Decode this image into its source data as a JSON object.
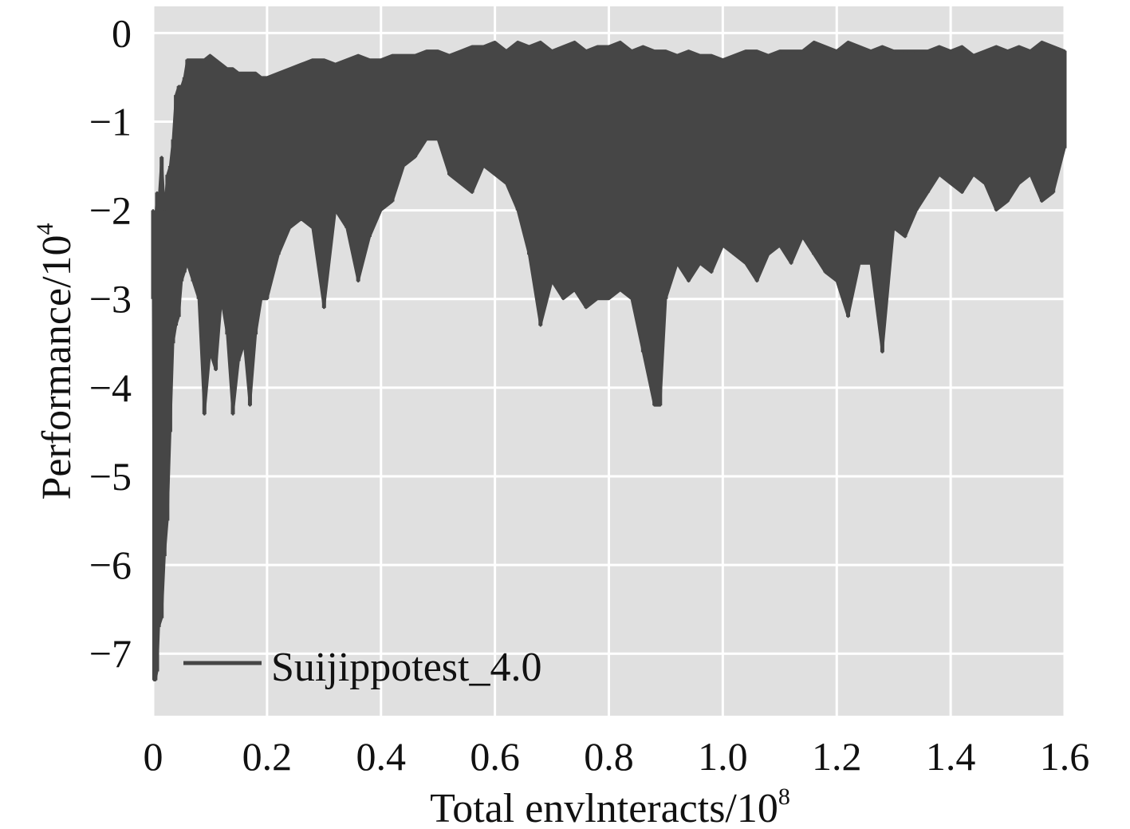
{
  "chart_data": {
    "type": "line",
    "title": "",
    "xlabel": "Total envlnteracts/10",
    "xlabel_superscript": "8",
    "ylabel": "Performance/10",
    "ylabel_superscript": "4",
    "xlim": [
      0,
      1.6
    ],
    "ylim": [
      -7.7,
      0.3
    ],
    "x_ticks": [
      0,
      0.2,
      0.4,
      0.6,
      0.8,
      1.0,
      1.2,
      1.4,
      1.6
    ],
    "x_tick_labels": [
      "0",
      "0.2",
      "0.4",
      "0.6",
      "0.8",
      "1.0",
      "1.2",
      "1.4",
      "1.6"
    ],
    "y_ticks": [
      0,
      -1,
      -2,
      -3,
      -4,
      -5,
      -6,
      -7
    ],
    "y_tick_labels": [
      "0",
      "−1",
      "−2",
      "−3",
      "−4",
      "−5",
      "−6",
      "−7"
    ],
    "grid": true,
    "legend_position": "bottom-left",
    "colors": {
      "series": "#464646",
      "plot_background": "#e0e0e0",
      "grid": "#ffffff"
    },
    "series": [
      {
        "name": "Suijippotest_4.0",
        "x": [
          0,
          0.002,
          0.004,
          0.007,
          0.01,
          0.015,
          0.02,
          0.025,
          0.03,
          0.035,
          0.04,
          0.045,
          0.05,
          0.055,
          0.06,
          0.07,
          0.08,
          0.09,
          0.1,
          0.11,
          0.12,
          0.13,
          0.14,
          0.15,
          0.16,
          0.17,
          0.18,
          0.19,
          0.2,
          0.22,
          0.24,
          0.26,
          0.28,
          0.3,
          0.32,
          0.34,
          0.36,
          0.38,
          0.4,
          0.42,
          0.44,
          0.46,
          0.48,
          0.5,
          0.52,
          0.54,
          0.56,
          0.58,
          0.6,
          0.62,
          0.64,
          0.66,
          0.68,
          0.7,
          0.72,
          0.74,
          0.76,
          0.78,
          0.8,
          0.82,
          0.84,
          0.86,
          0.88,
          0.89,
          0.9,
          0.92,
          0.94,
          0.96,
          0.98,
          1.0,
          1.02,
          1.04,
          1.06,
          1.08,
          1.1,
          1.12,
          1.14,
          1.16,
          1.18,
          1.2,
          1.22,
          1.24,
          1.26,
          1.28,
          1.3,
          1.32,
          1.34,
          1.36,
          1.38,
          1.4,
          1.42,
          1.44,
          1.46,
          1.48,
          1.5,
          1.52,
          1.54,
          1.56,
          1.58,
          1.6
        ],
        "upper": [
          -2.0,
          -2.2,
          -2.1,
          -1.8,
          -1.9,
          -1.4,
          -2.0,
          -1.6,
          -1.5,
          -1.2,
          -0.7,
          -0.6,
          -0.6,
          -0.5,
          -0.3,
          -0.3,
          -0.3,
          -0.3,
          -0.25,
          -0.3,
          -0.35,
          -0.4,
          -0.4,
          -0.45,
          -0.45,
          -0.45,
          -0.45,
          -0.5,
          -0.5,
          -0.45,
          -0.4,
          -0.35,
          -0.3,
          -0.3,
          -0.35,
          -0.3,
          -0.25,
          -0.3,
          -0.3,
          -0.25,
          -0.25,
          -0.25,
          -0.2,
          -0.2,
          -0.25,
          -0.2,
          -0.15,
          -0.15,
          -0.1,
          -0.2,
          -0.1,
          -0.15,
          -0.1,
          -0.2,
          -0.15,
          -0.1,
          -0.2,
          -0.15,
          -0.15,
          -0.1,
          -0.2,
          -0.15,
          -0.2,
          -0.2,
          -0.2,
          -0.25,
          -0.2,
          -0.25,
          -0.25,
          -0.3,
          -0.25,
          -0.2,
          -0.2,
          -0.25,
          -0.2,
          -0.2,
          -0.2,
          -0.1,
          -0.15,
          -0.2,
          -0.1,
          -0.15,
          -0.2,
          -0.15,
          -0.2,
          -0.2,
          -0.2,
          -0.2,
          -0.15,
          -0.2,
          -0.15,
          -0.25,
          -0.2,
          -0.15,
          -0.2,
          -0.15,
          -0.2,
          -0.1,
          -0.15,
          -0.2
        ],
        "lower": [
          -3.0,
          -7.3,
          -7.3,
          -7.2,
          -6.7,
          -6.6,
          -5.9,
          -5.5,
          -4.5,
          -3.5,
          -3.3,
          -3.2,
          -2.8,
          -2.7,
          -2.6,
          -2.8,
          -3.0,
          -4.3,
          -3.6,
          -3.8,
          -3.0,
          -3.4,
          -4.3,
          -3.7,
          -3.5,
          -4.2,
          -3.4,
          -3.0,
          -3.0,
          -2.5,
          -2.2,
          -2.1,
          -2.2,
          -3.1,
          -2.0,
          -2.2,
          -2.8,
          -2.3,
          -2.0,
          -1.9,
          -1.5,
          -1.4,
          -1.2,
          -1.2,
          -1.6,
          -1.7,
          -1.8,
          -1.5,
          -1.6,
          -1.7,
          -2.0,
          -2.5,
          -3.3,
          -2.8,
          -3.0,
          -2.9,
          -3.1,
          -3.0,
          -3.0,
          -2.9,
          -3.0,
          -3.6,
          -4.2,
          -4.2,
          -3.0,
          -2.6,
          -2.8,
          -2.6,
          -2.7,
          -2.4,
          -2.5,
          -2.6,
          -2.8,
          -2.5,
          -2.4,
          -2.6,
          -2.3,
          -2.5,
          -2.7,
          -2.8,
          -3.2,
          -2.6,
          -2.6,
          -3.6,
          -2.2,
          -2.3,
          -2.0,
          -1.8,
          -1.6,
          -1.7,
          -1.8,
          -1.6,
          -1.7,
          -2.0,
          -1.9,
          -1.7,
          -1.6,
          -1.9,
          -1.8,
          -1.3
        ]
      }
    ]
  }
}
